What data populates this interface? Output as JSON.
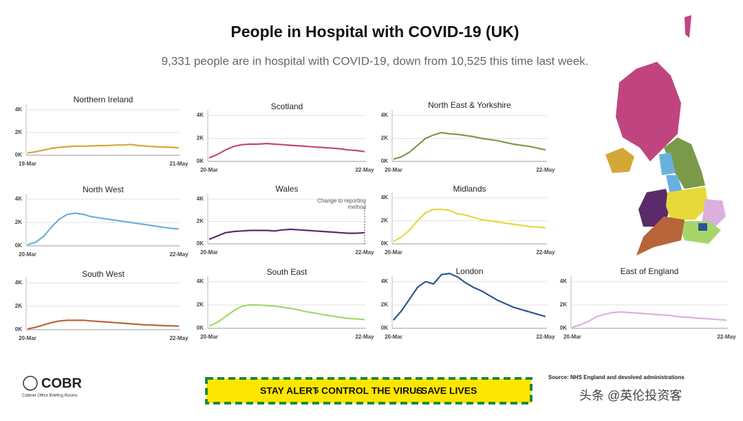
{
  "header": {
    "title": "People in Hospital with COVID-19 (UK)",
    "subtitle": "9,331 people are in hospital with COVID-19, down from 10,525 this time last week."
  },
  "chart_data": [
    {
      "type": "line",
      "title": "Northern Ireland",
      "color": "#d4a838",
      "ylim": [
        0,
        4000
      ],
      "yticks": [
        {
          "value": 0,
          "label": "0K"
        },
        {
          "value": 2000,
          "label": "2K"
        },
        {
          "value": 4000,
          "label": "4K"
        }
      ],
      "grid": true,
      "categories": [
        "19-Mar",
        null,
        null,
        null,
        null,
        null,
        null,
        null,
        null,
        null,
        null,
        null,
        null,
        null,
        null,
        null,
        null,
        null,
        null,
        "21-May"
      ],
      "values": [
        200,
        300,
        450,
        600,
        700,
        750,
        800,
        800,
        820,
        850,
        850,
        900,
        900,
        950,
        850,
        800,
        750,
        720,
        700,
        650
      ]
    },
    {
      "type": "line",
      "title": "Scotland",
      "color": "#c0457e",
      "ylim": [
        0,
        4000
      ],
      "yticks": [
        {
          "value": 0,
          "label": "0K"
        },
        {
          "value": 2000,
          "label": "2K"
        },
        {
          "value": 4000,
          "label": "4K"
        }
      ],
      "grid": true,
      "categories": [
        "20-Mar",
        null,
        null,
        null,
        null,
        null,
        null,
        null,
        null,
        null,
        null,
        null,
        null,
        null,
        null,
        null,
        null,
        null,
        null,
        "22-May"
      ],
      "values": [
        300,
        600,
        1000,
        1300,
        1450,
        1500,
        1500,
        1550,
        1500,
        1450,
        1400,
        1350,
        1300,
        1250,
        1200,
        1150,
        1100,
        1000,
        950,
        850
      ]
    },
    {
      "type": "line",
      "title": "North East & Yorkshire",
      "color": "#7a9a4a",
      "ylim": [
        0,
        4000
      ],
      "yticks": [
        {
          "value": 0,
          "label": "0K"
        },
        {
          "value": 2000,
          "label": "2K"
        },
        {
          "value": 4000,
          "label": "4K"
        }
      ],
      "grid": true,
      "categories": [
        "20-Mar",
        null,
        null,
        null,
        null,
        null,
        null,
        null,
        null,
        null,
        null,
        null,
        null,
        null,
        null,
        null,
        null,
        null,
        null,
        "22-May"
      ],
      "values": [
        200,
        400,
        800,
        1400,
        2000,
        2300,
        2500,
        2400,
        2350,
        2250,
        2150,
        2000,
        1900,
        1800,
        1650,
        1500,
        1400,
        1300,
        1150,
        1000
      ]
    },
    {
      "type": "line",
      "title": "North West",
      "color": "#6ab0dd",
      "ylim": [
        0,
        4000
      ],
      "yticks": [
        {
          "value": 0,
          "label": "0K"
        },
        {
          "value": 2000,
          "label": "2K"
        },
        {
          "value": 4000,
          "label": "4K"
        }
      ],
      "grid": true,
      "categories": [
        "20-Mar",
        null,
        null,
        null,
        null,
        null,
        null,
        null,
        null,
        null,
        null,
        null,
        null,
        null,
        null,
        null,
        null,
        null,
        null,
        "22-May"
      ],
      "values": [
        100,
        300,
        800,
        1600,
        2300,
        2700,
        2800,
        2700,
        2500,
        2400,
        2300,
        2200,
        2100,
        2000,
        1900,
        1800,
        1700,
        1600,
        1500,
        1450
      ]
    },
    {
      "type": "line",
      "title": "Wales",
      "color": "#5a2a6a",
      "ylim": [
        0,
        4000
      ],
      "yticks": [
        {
          "value": 0,
          "label": "0K"
        },
        {
          "value": 2000,
          "label": "2K"
        },
        {
          "value": 4000,
          "label": "4K"
        }
      ],
      "grid": true,
      "annotation": "Change to reporting method",
      "categories": [
        "20-Mar",
        null,
        null,
        null,
        null,
        null,
        null,
        null,
        null,
        null,
        null,
        null,
        null,
        null,
        null,
        null,
        null,
        null,
        null,
        "22-May"
      ],
      "values": [
        400,
        700,
        1000,
        1100,
        1150,
        1200,
        1200,
        1200,
        1150,
        1250,
        1300,
        1250,
        1200,
        1150,
        1100,
        1050,
        1000,
        950,
        950,
        1000
      ]
    },
    {
      "type": "line",
      "title": "Midlands",
      "color": "#e6d93a",
      "ylim": [
        0,
        4000
      ],
      "yticks": [
        {
          "value": 0,
          "label": "0K"
        },
        {
          "value": 2000,
          "label": "2K"
        },
        {
          "value": 4000,
          "label": "4K"
        }
      ],
      "grid": true,
      "categories": [
        "20-Mar",
        null,
        null,
        null,
        null,
        null,
        null,
        null,
        null,
        null,
        null,
        null,
        null,
        null,
        null,
        null,
        null,
        null,
        null,
        "22-May"
      ],
      "values": [
        200,
        600,
        1200,
        2000,
        2700,
        3000,
        3000,
        2900,
        2600,
        2500,
        2300,
        2100,
        2000,
        1900,
        1800,
        1700,
        1600,
        1500,
        1450,
        1400
      ]
    },
    {
      "type": "line",
      "title": "South West",
      "color": "#b8643a",
      "ylim": [
        0,
        4000
      ],
      "yticks": [
        {
          "value": 0,
          "label": "0K"
        },
        {
          "value": 2000,
          "label": "2K"
        },
        {
          "value": 4000,
          "label": "4K"
        }
      ],
      "grid": true,
      "categories": [
        "20-Mar",
        null,
        null,
        null,
        null,
        null,
        null,
        null,
        null,
        null,
        null,
        null,
        null,
        null,
        null,
        null,
        null,
        null,
        null,
        "22-May"
      ],
      "values": [
        50,
        200,
        400,
        600,
        750,
        800,
        800,
        800,
        750,
        700,
        650,
        600,
        550,
        500,
        450,
        400,
        380,
        350,
        330,
        300
      ]
    },
    {
      "type": "line",
      "title": "South East",
      "color": "#a6d66a",
      "ylim": [
        0,
        4000
      ],
      "yticks": [
        {
          "value": 0,
          "label": "0K"
        },
        {
          "value": 2000,
          "label": "2K"
        },
        {
          "value": 4000,
          "label": "4K"
        }
      ],
      "grid": true,
      "categories": [
        "20-Mar",
        null,
        null,
        null,
        null,
        null,
        null,
        null,
        null,
        null,
        null,
        null,
        null,
        null,
        null,
        null,
        null,
        null,
        null,
        "22-May"
      ],
      "values": [
        200,
        500,
        1000,
        1500,
        1900,
        2000,
        2000,
        1950,
        1900,
        1800,
        1700,
        1550,
        1400,
        1300,
        1150,
        1050,
        950,
        850,
        800,
        750
      ]
    },
    {
      "type": "line",
      "title": "London",
      "color": "#2a5590",
      "ylim": [
        0,
        4000
      ],
      "yticks": [
        {
          "value": 0,
          "label": "0K"
        },
        {
          "value": 2000,
          "label": "2K"
        },
        {
          "value": 4000,
          "label": "4K"
        }
      ],
      "grid": true,
      "categories": [
        "20-Mar",
        null,
        null,
        null,
        null,
        null,
        null,
        null,
        null,
        null,
        null,
        null,
        null,
        null,
        null,
        null,
        null,
        null,
        null,
        "22-May"
      ],
      "values": [
        700,
        1500,
        2500,
        3500,
        4000,
        3800,
        4600,
        4700,
        4400,
        3900,
        3500,
        3200,
        2800,
        2400,
        2100,
        1800,
        1600,
        1400,
        1200,
        1000
      ]
    },
    {
      "type": "line",
      "title": "East of England",
      "color": "#dbb0dc",
      "ylim": [
        0,
        4000
      ],
      "yticks": [
        {
          "value": 0,
          "label": "0K"
        },
        {
          "value": 2000,
          "label": "2K"
        },
        {
          "value": 4000,
          "label": "4K"
        }
      ],
      "grid": true,
      "categories": [
        "20-Mar",
        null,
        null,
        null,
        null,
        null,
        null,
        null,
        null,
        null,
        null,
        null,
        null,
        null,
        null,
        null,
        null,
        null,
        null,
        "22-May"
      ],
      "values": [
        100,
        300,
        600,
        1000,
        1200,
        1350,
        1400,
        1350,
        1300,
        1250,
        1200,
        1150,
        1100,
        1000,
        950,
        900,
        850,
        800,
        750,
        700
      ]
    }
  ],
  "footer": {
    "logo": "COBR",
    "logo_sub": "Cabinet Office Briefing Rooms",
    "banner": [
      "STAY ALERT",
      "CONTROL THE VIRUS",
      "SAVE LIVES"
    ],
    "source": "Source: NHS England and devolved administrations",
    "watermark": "头条 @英伦投资客"
  }
}
